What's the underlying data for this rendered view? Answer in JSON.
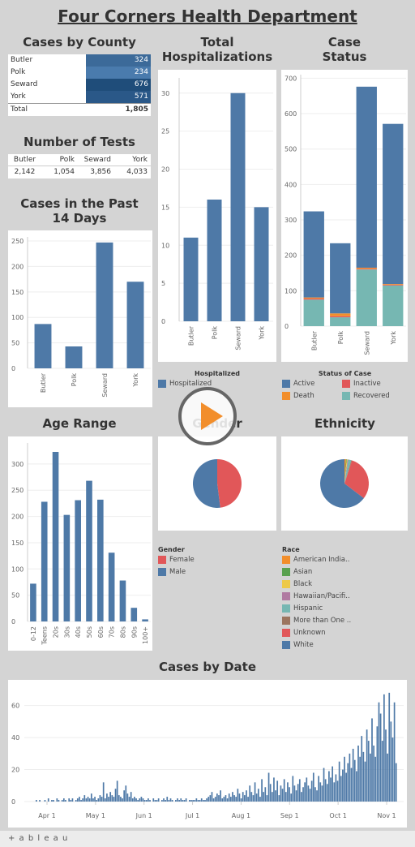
{
  "title": "Four Corners Health Department",
  "colors": {
    "blue": "#4e79a7",
    "orange": "#f28e2b",
    "red": "#e15759",
    "teal": "#76b7b2",
    "green": "#59a14f",
    "yellow": "#edc948",
    "purple": "#b07aa1",
    "brown": "#9c755f"
  },
  "sections": {
    "cases_by_county": "Cases by County",
    "total_hospitalizations": "Total Hospitalizations",
    "case_status": "Case Status",
    "number_of_tests": "Number of Tests",
    "cases_past_14": "Cases in the Past 14 Days",
    "age_range": "Age Range",
    "gender": "Gender",
    "ethnicity": "Ethnicity",
    "cases_by_date": "Cases by Date"
  },
  "cases_by_county": {
    "rows": [
      {
        "county": "Butler",
        "value": "324"
      },
      {
        "county": "Polk",
        "value": "234"
      },
      {
        "county": "Seward",
        "value": "676"
      },
      {
        "county": "York",
        "value": "571"
      }
    ],
    "total_label": "Total",
    "total_value": "1,805"
  },
  "number_of_tests": {
    "headers": [
      "Butler",
      "Polk",
      "Seward",
      "York"
    ],
    "values": [
      "2,142",
      "1,054",
      "3,856",
      "4,033"
    ]
  },
  "legends": {
    "hosp_title": "Hospitalized",
    "hosp_item": "Hospitalized",
    "status_title": "Status of Case",
    "status_items": [
      "Active",
      "Inactive",
      "Death",
      "Recovered"
    ],
    "gender_title": "Gender",
    "gender_items": [
      "Female",
      "Male"
    ],
    "race_title": "Race",
    "race_items": [
      "American India..",
      "Asian",
      "Black",
      "Hawaiian/Pacifi..",
      "Hispanic",
      "More than One ..",
      "Unknown",
      "White"
    ]
  },
  "footer": {
    "brand": "+ a b l e a u"
  },
  "chart_data": [
    {
      "id": "hosp",
      "type": "bar",
      "categories": [
        "Butler",
        "Polk",
        "Seward",
        "York"
      ],
      "values": [
        11,
        16,
        30,
        15
      ],
      "ylim": [
        0,
        32
      ],
      "yticks": [
        0,
        5,
        10,
        15,
        20,
        25,
        30
      ]
    },
    {
      "id": "status",
      "type": "bar",
      "stacked": true,
      "categories": [
        "Butler",
        "Polk",
        "Seward",
        "York"
      ],
      "series": [
        {
          "name": "Recovered",
          "values": [
            75,
            25,
            160,
            115
          ]
        },
        {
          "name": "Inactive",
          "values": [
            3,
            3,
            2,
            2
          ]
        },
        {
          "name": "Death",
          "values": [
            3,
            8,
            3,
            2
          ]
        },
        {
          "name": "Active",
          "values": [
            243,
            198,
            511,
            452
          ]
        }
      ],
      "ylim": [
        0,
        710
      ],
      "yticks": [
        0,
        100,
        200,
        300,
        400,
        500,
        600,
        700
      ]
    },
    {
      "id": "past14",
      "type": "bar",
      "categories": [
        "Butler",
        "Polk",
        "Seward",
        "York"
      ],
      "values": [
        87,
        43,
        247,
        170
      ],
      "ylim": [
        0,
        258
      ],
      "yticks": [
        0,
        50,
        100,
        150,
        200,
        250
      ]
    },
    {
      "id": "age",
      "type": "bar",
      "categories": [
        "0-12",
        "Teens",
        "20s",
        "30s",
        "40s",
        "50s",
        "60s",
        "70s",
        "80s",
        "90s",
        "100+"
      ],
      "values": [
        72,
        228,
        323,
        203,
        231,
        268,
        232,
        131,
        78,
        26,
        4
      ],
      "ylim": [
        0,
        340
      ],
      "yticks": [
        0,
        50,
        100,
        150,
        200,
        250,
        300
      ]
    },
    {
      "id": "gender",
      "type": "pie",
      "slices": [
        {
          "name": "Female",
          "value": 48
        },
        {
          "name": "Male",
          "value": 52
        }
      ]
    },
    {
      "id": "ethnicity",
      "type": "pie",
      "slices": [
        {
          "name": "American Indian",
          "value": 1
        },
        {
          "name": "Asian",
          "value": 0.5
        },
        {
          "name": "Black",
          "value": 0.5
        },
        {
          "name": "Hawaiian/Pacific",
          "value": 0.5
        },
        {
          "name": "Hispanic",
          "value": 2
        },
        {
          "name": "More than One",
          "value": 0.5
        },
        {
          "name": "Unknown",
          "value": 30
        },
        {
          "name": "White",
          "value": 64
        }
      ]
    },
    {
      "id": "date",
      "type": "bar",
      "xticks": [
        "Apr 1",
        "May 1",
        "Jun 1",
        "Jul 1",
        "Aug 1",
        "Sep 1",
        "Oct 1",
        "Nov 1"
      ],
      "ylim": [
        0,
        72
      ],
      "yticks": [
        0,
        20,
        40,
        60
      ],
      "values": [
        1,
        0,
        1,
        0,
        0,
        1,
        0,
        2,
        0,
        1,
        1,
        0,
        2,
        1,
        0,
        1,
        2,
        1,
        0,
        2,
        1,
        2,
        0,
        1,
        2,
        3,
        1,
        2,
        4,
        2,
        3,
        2,
        5,
        2,
        3,
        1,
        2,
        4,
        3,
        12,
        2,
        5,
        3,
        6,
        4,
        3,
        8,
        13,
        4,
        3,
        2,
        7,
        10,
        5,
        3,
        6,
        2,
        3,
        2,
        1,
        2,
        3,
        2,
        1,
        1,
        2,
        1,
        0,
        2,
        1,
        1,
        2,
        0,
        1,
        2,
        1,
        3,
        1,
        2,
        1,
        0,
        1,
        2,
        1,
        2,
        1,
        1,
        2,
        0,
        1,
        1,
        1,
        1,
        2,
        1,
        1,
        2,
        1,
        1,
        2,
        3,
        4,
        6,
        2,
        3,
        5,
        4,
        7,
        2,
        3,
        4,
        2,
        5,
        3,
        6,
        4,
        3,
        8,
        5,
        2,
        6,
        4,
        7,
        3,
        10,
        6,
        4,
        12,
        5,
        8,
        3,
        14,
        6,
        9,
        4,
        18,
        11,
        6,
        15,
        7,
        13,
        4,
        10,
        8,
        14,
        6,
        12,
        9,
        5,
        16,
        10,
        7,
        11,
        14,
        6,
        9,
        12,
        15,
        10,
        8,
        13,
        18,
        9,
        7,
        16,
        12,
        10,
        21,
        14,
        11,
        19,
        15,
        22,
        12,
        17,
        13,
        25,
        16,
        20,
        28,
        18,
        24,
        30,
        21,
        33,
        26,
        19,
        35,
        28,
        41,
        31,
        25,
        45,
        38,
        30,
        52,
        35,
        28,
        47,
        62,
        55,
        38,
        67,
        45,
        30,
        68,
        50,
        40,
        62,
        24
      ]
    }
  ]
}
